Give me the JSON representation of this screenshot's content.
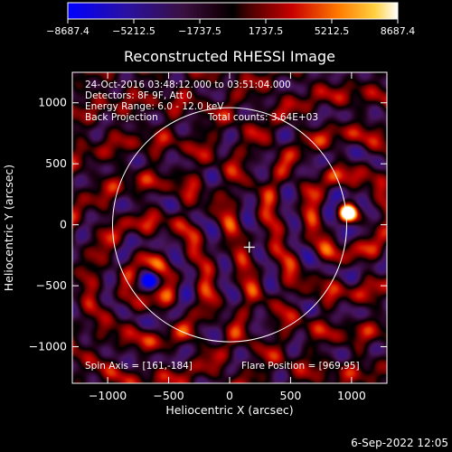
{
  "chart_data": {
    "type": "heatmap",
    "title": "Reconstructed RHESSI Image",
    "xlabel": "Heliocentric X (arcsec)",
    "ylabel": "Heliocentric Y (arcsec)",
    "xlim": [
      -1290,
      1290
    ],
    "ylim": [
      -1300,
      1250
    ],
    "xticks": [
      -1000,
      -500,
      0,
      500,
      1000
    ],
    "xtick_labels": [
      "−1000",
      "−500",
      "0",
      "500",
      "1000"
    ],
    "yticks": [
      -1000,
      -500,
      0,
      500,
      1000
    ],
    "ytick_labels": [
      "−1000",
      "−500",
      "0",
      "500",
      "1000"
    ],
    "colorbar": {
      "ticks": [
        -8687.4,
        -5212.5,
        -1737.5,
        1737.5,
        5212.5,
        8687.4
      ],
      "tick_labels": [
        "−8687.4",
        "−5212.5",
        "−1737.5",
        "1737.5",
        "5212.5",
        "8687.4"
      ],
      "range": [
        -8687.4,
        8687.4
      ]
    },
    "annotations": [
      "24-Oct-2016 03:48:12.000 to 03:51:04.000",
      "Detectors: 8F 9F, Att 0",
      "Energy Range: 6.0 - 12.0 keV",
      "Back Projection",
      "Total counts: 3.64E+03"
    ],
    "spin_axis_text": "Spin Axis = [161,-184]",
    "flare_position_text": "Flare Position = [969,95]",
    "flare_position": [
      969,
      95
    ],
    "spin_axis": [
      161,
      -184
    ],
    "solar_limb_radius": 960,
    "sources": [
      {
        "x": 969,
        "y": 95,
        "amplitude": 8687.4
      },
      {
        "x": -660,
        "y": -460,
        "amplitude": -8000
      }
    ]
  },
  "footer": {
    "date": "6-Sep-2022 12:05"
  }
}
